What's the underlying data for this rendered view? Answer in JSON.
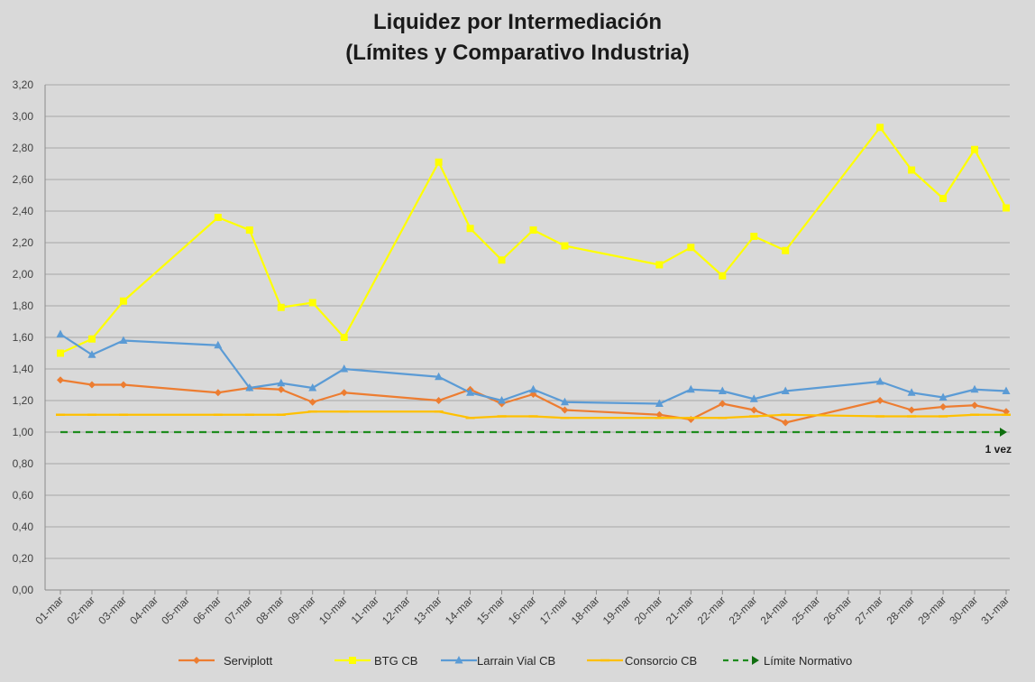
{
  "chart_data": {
    "type": "line",
    "title_line1": "Liquidez por Intermediación",
    "title_line2": "(Límites y Comparativo Industria)",
    "categories": [
      "01-mar",
      "02-mar",
      "03-mar",
      "04-mar",
      "05-mar",
      "06-mar",
      "07-mar",
      "08-mar",
      "09-mar",
      "10-mar",
      "11-mar",
      "12-mar",
      "13-mar",
      "14-mar",
      "15-mar",
      "16-mar",
      "17-mar",
      "18-mar",
      "19-mar",
      "20-mar",
      "21-mar",
      "22-mar",
      "23-mar",
      "24-mar",
      "25-mar",
      "26-mar",
      "27-mar",
      "28-mar",
      "29-mar",
      "30-mar",
      "31-mar"
    ],
    "yticks": [
      "0,00",
      "0,20",
      "0,40",
      "0,60",
      "0,80",
      "1,00",
      "1,20",
      "1,40",
      "1,60",
      "1,80",
      "2,00",
      "2,20",
      "2,40",
      "2,60",
      "2,80",
      "3,00",
      "3,20"
    ],
    "ylim": [
      0,
      3.2
    ],
    "grid": true,
    "legend_position": "bottom",
    "series": [
      {
        "name": "Serviplott",
        "color": "#ed7d31",
        "marker": "diamond",
        "values": [
          1.33,
          1.3,
          1.3,
          null,
          null,
          1.25,
          1.28,
          1.27,
          1.19,
          1.25,
          null,
          null,
          1.2,
          1.27,
          1.18,
          1.24,
          1.14,
          null,
          null,
          1.11,
          1.08,
          1.18,
          1.14,
          1.06,
          null,
          null,
          1.2,
          1.14,
          1.16,
          1.17,
          1.13
        ]
      },
      {
        "name": "BTG CB",
        "color": "#ffff00",
        "marker": "square",
        "values": [
          1.5,
          1.59,
          1.83,
          null,
          null,
          2.36,
          2.28,
          1.79,
          1.82,
          1.6,
          null,
          null,
          2.71,
          2.29,
          2.09,
          2.28,
          2.18,
          null,
          null,
          2.06,
          2.17,
          1.99,
          2.24,
          2.15,
          null,
          null,
          2.93,
          2.66,
          2.48,
          2.79,
          2.42
        ]
      },
      {
        "name": "Larrain Vial CB",
        "color": "#5b9bd5",
        "marker": "triangle",
        "values": [
          1.62,
          1.49,
          1.58,
          null,
          null,
          1.55,
          1.28,
          1.31,
          1.28,
          1.4,
          null,
          null,
          1.35,
          1.25,
          1.2,
          1.27,
          1.19,
          null,
          null,
          1.18,
          1.27,
          1.26,
          1.21,
          1.26,
          null,
          null,
          1.32,
          1.25,
          1.22,
          1.27,
          1.26
        ]
      },
      {
        "name": "Consorcio CB",
        "color": "#ffc000",
        "marker": "dash",
        "values": [
          1.11,
          1.11,
          1.11,
          null,
          null,
          1.11,
          1.11,
          1.11,
          1.13,
          1.13,
          null,
          null,
          1.13,
          1.09,
          1.1,
          1.1,
          1.09,
          null,
          null,
          1.09,
          1.09,
          1.09,
          1.1,
          1.11,
          null,
          null,
          1.1,
          1.1,
          1.1,
          1.11,
          1.11
        ]
      }
    ],
    "reference": {
      "name": "Límite Normativo",
      "value": 1.0,
      "color": "#1e8c1e",
      "label": "1 vez"
    }
  }
}
